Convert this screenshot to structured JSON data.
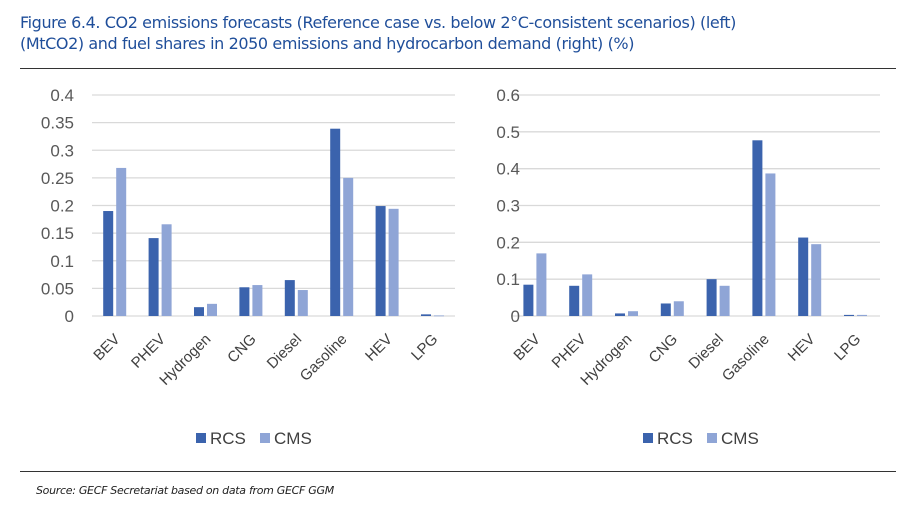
{
  "figure": {
    "title_line1": "Figure 6.4. CO2 emissions forecasts (Reference case vs. below 2°C-consistent scenarios) (left)",
    "title_line2": "(MtCO2) and fuel shares in 2050 emissions and hydrocarbon demand (right) (%)",
    "source": "Source: GECF Secretariat based on data from GECF GGM"
  },
  "colors": {
    "RCS": "#3b63ad",
    "CMS": "#8fa5d6",
    "grid": "#d9d9d9",
    "title": "#1f4e9a"
  },
  "chart_data": [
    {
      "type": "bar",
      "title": "CO2 emissions forecasts",
      "xlabel": "",
      "ylabel": "MtCO2",
      "categories": [
        "BEV",
        "PHEV",
        "Hydrogen",
        "CNG",
        "Diesel",
        "Gasoline",
        "HEV",
        "LPG"
      ],
      "series": [
        {
          "name": "RCS",
          "values": [
            0.19,
            0.141,
            0.016,
            0.052,
            0.065,
            0.339,
            0.199,
            0.003
          ]
        },
        {
          "name": "CMS",
          "values": [
            0.268,
            0.166,
            0.022,
            0.056,
            0.047,
            0.25,
            0.194,
            0.001
          ]
        }
      ],
      "ylim": [
        0,
        0.4
      ],
      "yticks": [
        "0",
        "0.05",
        "0.1",
        "0.15",
        "0.2",
        "0.25",
        "0.3",
        "0.35",
        "0.4"
      ],
      "ytick_values": [
        0,
        0.05,
        0.1,
        0.15,
        0.2,
        0.25,
        0.3,
        0.35,
        0.4
      ],
      "grid": true,
      "legend": "bottom"
    },
    {
      "type": "bar",
      "title": "Fuel shares in 2050 emissions and hydrocarbon demand",
      "xlabel": "",
      "ylabel": "%",
      "categories": [
        "BEV",
        "PHEV",
        "Hydrogen",
        "CNG",
        "Diesel",
        "Gasoline",
        "HEV",
        "LPG"
      ],
      "series": [
        {
          "name": "RCS",
          "values": [
            0.085,
            0.082,
            0.007,
            0.034,
            0.1,
            0.477,
            0.213,
            0.003
          ]
        },
        {
          "name": "CMS",
          "values": [
            0.17,
            0.113,
            0.013,
            0.04,
            0.082,
            0.387,
            0.195,
            0.003
          ]
        }
      ],
      "ylim": [
        0,
        0.6
      ],
      "yticks": [
        "0",
        "0.1",
        "0.2",
        "0.3",
        "0.4",
        "0.5",
        "0.6"
      ],
      "ytick_values": [
        0,
        0.1,
        0.2,
        0.3,
        0.4,
        0.5,
        0.6
      ],
      "grid": true,
      "legend": "bottom"
    }
  ]
}
